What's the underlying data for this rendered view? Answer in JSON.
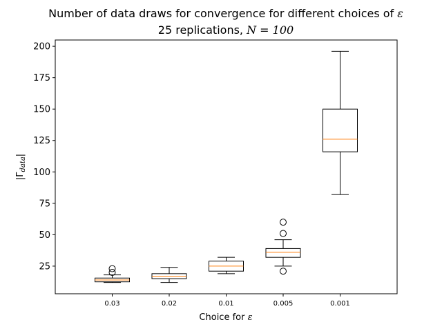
{
  "chart_data": {
    "type": "boxplot",
    "title": "Number of data draws for convergence for different choices of ",
    "title_symbol": "ε",
    "subtitle_prefix": "25 replications, ",
    "subtitle_math": "N = 100",
    "xlabel": "Choice for ",
    "xlabel_symbol": "ε",
    "ylabel_base": "|Γ",
    "ylabel_sub": "data",
    "ylabel_end": "|",
    "categories": [
      "0.03",
      "0.02",
      "0.01",
      "0.005",
      "0.001"
    ],
    "yticks": [
      "25",
      "50",
      "75",
      "100",
      "125",
      "150",
      "175",
      "200"
    ],
    "ylim": [
      3,
      205
    ],
    "boxes": [
      {
        "label": "0.03",
        "whisker_low": 12,
        "q1": 12.5,
        "median": 14,
        "q3": 15.5,
        "whisker_high": 18,
        "fliers": [
          20,
          23
        ]
      },
      {
        "label": "0.02",
        "whisker_low": 12,
        "q1": 15,
        "median": 17,
        "q3": 19,
        "whisker_high": 24,
        "fliers": []
      },
      {
        "label": "0.01",
        "whisker_low": 19,
        "q1": 21,
        "median": 25,
        "q3": 29,
        "whisker_high": 32,
        "fliers": []
      },
      {
        "label": "0.005",
        "whisker_low": 25,
        "q1": 32,
        "median": 36,
        "q3": 39,
        "whisker_high": 46,
        "fliers": [
          21,
          51,
          60
        ]
      },
      {
        "label": "0.001",
        "whisker_low": 82,
        "q1": 116,
        "median": 126,
        "q3": 150,
        "whisker_high": 196,
        "fliers": []
      }
    ],
    "colors": {
      "box": "#000000",
      "median": "#ff7f0e",
      "flier": "#000000"
    },
    "grid": false
  }
}
